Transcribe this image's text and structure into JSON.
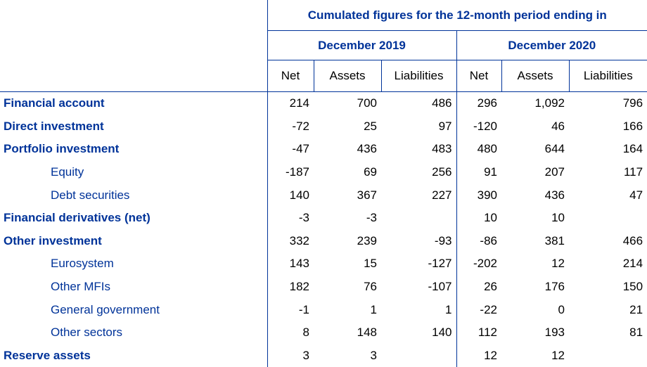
{
  "header": {
    "title": "Cumulated figures for the 12-month period ending in",
    "periods": [
      "December 2019",
      "December 2020"
    ],
    "columns": [
      "Net",
      "Assets",
      "Liabilities",
      "Net",
      "Assets",
      "Liabilities"
    ]
  },
  "rows": [
    {
      "label": "Financial account",
      "level": 0,
      "values": [
        "214",
        "700",
        "486",
        "296",
        "1,092",
        "796"
      ]
    },
    {
      "label": "Direct investment",
      "level": 0,
      "values": [
        "-72",
        "25",
        "97",
        "-120",
        "46",
        "166"
      ]
    },
    {
      "label": "Portfolio investment",
      "level": 0,
      "values": [
        "-47",
        "436",
        "483",
        "480",
        "644",
        "164"
      ]
    },
    {
      "label": "Equity",
      "level": 1,
      "values": [
        "-187",
        "69",
        "256",
        "91",
        "207",
        "117"
      ]
    },
    {
      "label": "Debt securities",
      "level": 1,
      "values": [
        "140",
        "367",
        "227",
        "390",
        "436",
        "47"
      ]
    },
    {
      "label": "Financial derivatives (net)",
      "level": 0,
      "values": [
        "-3",
        "-3",
        "",
        "10",
        "10",
        ""
      ]
    },
    {
      "label": "Other investment",
      "level": 0,
      "values": [
        "332",
        "239",
        "-93",
        "-86",
        "381",
        "466"
      ]
    },
    {
      "label": "Eurosystem",
      "level": 1,
      "values": [
        "143",
        "15",
        "-127",
        "-202",
        "12",
        "214"
      ]
    },
    {
      "label": "Other MFIs",
      "level": 1,
      "values": [
        "182",
        "76",
        "-107",
        "26",
        "176",
        "150"
      ]
    },
    {
      "label": "General government",
      "level": 1,
      "values": [
        "-1",
        "1",
        "1",
        "-22",
        "0",
        "21"
      ]
    },
    {
      "label": "Other sectors",
      "level": 1,
      "values": [
        "8",
        "148",
        "140",
        "112",
        "193",
        "81"
      ]
    },
    {
      "label": "Reserve assets",
      "level": 0,
      "values": [
        "3",
        "3",
        "",
        "12",
        "12",
        ""
      ]
    }
  ]
}
